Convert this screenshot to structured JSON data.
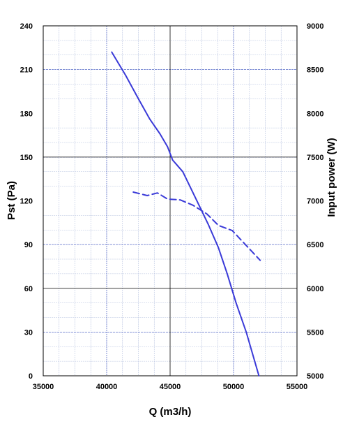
{
  "chart_data": {
    "type": "line",
    "title": "",
    "xlabel": "Q (m3/h)",
    "ylabel_left": "Pst (Pa)",
    "ylabel_right": "Input power (W)",
    "xlim": [
      35000,
      55000
    ],
    "ylim_left": [
      0,
      240
    ],
    "ylim_right": [
      5000,
      9000
    ],
    "x_ticks": [
      35000,
      40000,
      45000,
      50000,
      55000
    ],
    "y_ticks_left": [
      0,
      30,
      60,
      90,
      120,
      150,
      180,
      210,
      240
    ],
    "y_ticks_right": [
      5000,
      5500,
      6000,
      6500,
      7000,
      7500,
      8000,
      8500,
      9000
    ],
    "grid": true,
    "legend": "none",
    "series": [
      {
        "axis": "left",
        "style": "solid",
        "color": "#3a3ad8",
        "points": [
          [
            40400,
            222
          ],
          [
            41500,
            206
          ],
          [
            42500,
            190
          ],
          [
            43400,
            176
          ],
          [
            44200,
            166
          ],
          [
            44800,
            157
          ],
          [
            45200,
            148
          ],
          [
            46000,
            140
          ],
          [
            47000,
            122
          ],
          [
            48000,
            104
          ],
          [
            48800,
            88
          ],
          [
            49500,
            70
          ],
          [
            50200,
            50
          ],
          [
            51000,
            30
          ],
          [
            52000,
            0
          ]
        ]
      },
      {
        "axis": "right",
        "style": "dashed",
        "color": "#3a3ad8",
        "points": [
          [
            42100,
            7100
          ],
          [
            43200,
            7060
          ],
          [
            44000,
            7090
          ],
          [
            44800,
            7020
          ],
          [
            45800,
            7010
          ],
          [
            46800,
            6950
          ],
          [
            47900,
            6850
          ],
          [
            48800,
            6720
          ],
          [
            49900,
            6660
          ],
          [
            50800,
            6520
          ],
          [
            52100,
            6320
          ]
        ]
      }
    ]
  }
}
